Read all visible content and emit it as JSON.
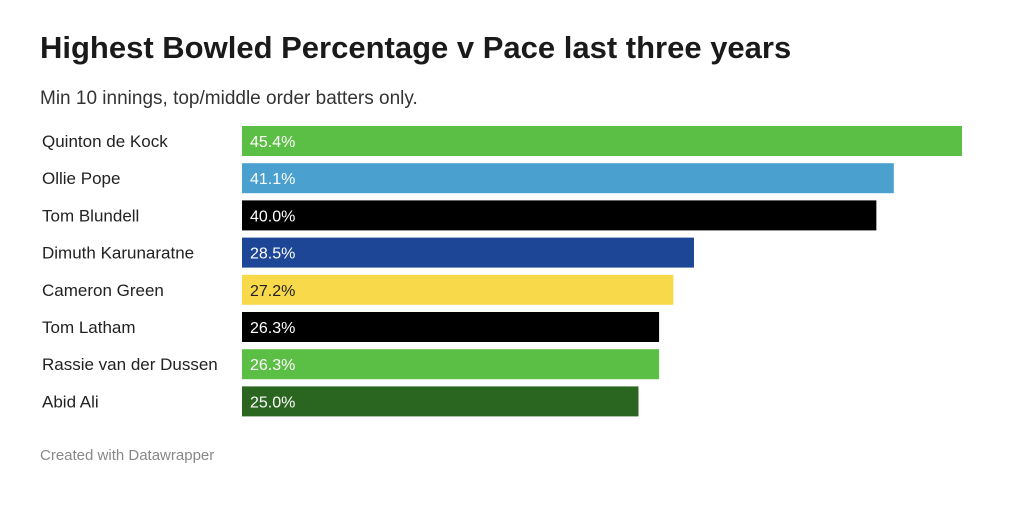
{
  "title": "Highest Bowled Percentage v Pace last three years",
  "subtitle": "Min 10 innings, top/middle order batters only.",
  "footer": "Created with Datawrapper",
  "chart_data": {
    "type": "bar",
    "orientation": "horizontal",
    "title": "Highest Bowled Percentage v Pace last three years",
    "subtitle": "Min 10 innings, top/middle order batters only.",
    "categories": [
      "Quinton de Kock",
      "Ollie Pope",
      "Tom Blundell",
      "Dimuth Karunaratne",
      "Cameron Green",
      "Tom Latham",
      "Rassie van der Dussen",
      "Abid Ali"
    ],
    "values": [
      45.4,
      41.1,
      40.0,
      28.5,
      27.2,
      26.3,
      26.3,
      25.0
    ],
    "value_labels": [
      "45.4%",
      "41.1%",
      "40.0%",
      "28.5%",
      "27.2%",
      "26.3%",
      "26.3%",
      "25.0%"
    ],
    "colors": [
      "#5cbf45",
      "#4aa1cf",
      "#000000",
      "#1e4696",
      "#f8d94a",
      "#000000",
      "#5cbf45",
      "#2b6620"
    ],
    "label_colors": [
      "#ffffff",
      "#ffffff",
      "#ffffff",
      "#ffffff",
      "#222222",
      "#ffffff",
      "#ffffff",
      "#ffffff"
    ],
    "xlim": [
      0,
      45.4
    ],
    "grid": false,
    "legend": "none"
  }
}
